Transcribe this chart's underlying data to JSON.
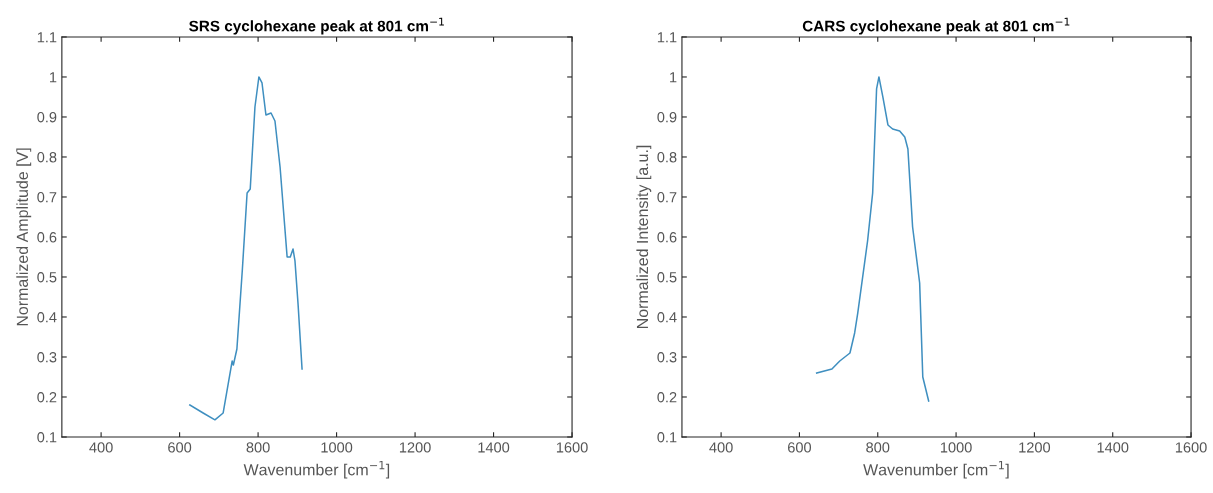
{
  "chart_data": [
    {
      "type": "line",
      "title": "SRS cyclohexane peak at 801 cm$^{−1}$",
      "xlabel": "Wavenumber [cm$^{−1}$]",
      "ylabel": "Normalized Amplitude [V]",
      "series": [
        {
          "color": "#3f8fc0",
          "x": [
            626,
            660,
            690,
            711,
            734,
            737,
            746,
            760,
            772,
            780,
            792,
            802,
            810,
            820,
            833,
            843,
            856,
            874,
            882,
            889,
            894,
            902,
            912
          ],
          "values": [
            0.18,
            0.16,
            0.143,
            0.16,
            0.29,
            0.28,
            0.32,
            0.52,
            0.71,
            0.72,
            0.925,
            1.0,
            0.985,
            0.905,
            0.91,
            0.89,
            0.775,
            0.55,
            0.55,
            0.57,
            0.54,
            0.43,
            0.27
          ]
        }
      ],
      "xlim": [
        300,
        1600
      ],
      "xticks": [
        400,
        600,
        800,
        1000,
        1200,
        1400,
        1600
      ],
      "ylim": [
        0.1,
        1.1
      ],
      "yticks": [
        0.1,
        0.2,
        0.3,
        0.4,
        0.5,
        0.6,
        0.7,
        0.8,
        0.9,
        1,
        1.1
      ],
      "grid": false,
      "legend": false
    },
    {
      "type": "line",
      "title": "CARS cyclohexane peak at 801 cm$^{−1}$",
      "xlabel": "Wavenumber [cm$^{−1}$]",
      "ylabel": "Normalized Intensity [a.u.]",
      "series": [
        {
          "color": "#3f8fc0",
          "x": [
            644,
            683,
            703,
            729,
            741,
            749,
            774,
            787,
            797,
            803,
            813,
            826,
            838,
            856,
            869,
            877,
            889,
            907,
            915,
            930
          ],
          "values": [
            0.26,
            0.27,
            0.29,
            0.31,
            0.36,
            0.41,
            0.59,
            0.71,
            0.97,
            1.0,
            0.95,
            0.88,
            0.87,
            0.865,
            0.85,
            0.82,
            0.625,
            0.485,
            0.25,
            0.19
          ]
        }
      ],
      "xlim": [
        300,
        1600
      ],
      "xticks": [
        400,
        600,
        800,
        1000,
        1200,
        1400,
        1600
      ],
      "ylim": [
        0.1,
        1.1
      ],
      "yticks": [
        0.1,
        0.2,
        0.3,
        0.4,
        0.5,
        0.6,
        0.7,
        0.8,
        0.9,
        1,
        1.1
      ],
      "grid": false,
      "legend": false
    }
  ]
}
